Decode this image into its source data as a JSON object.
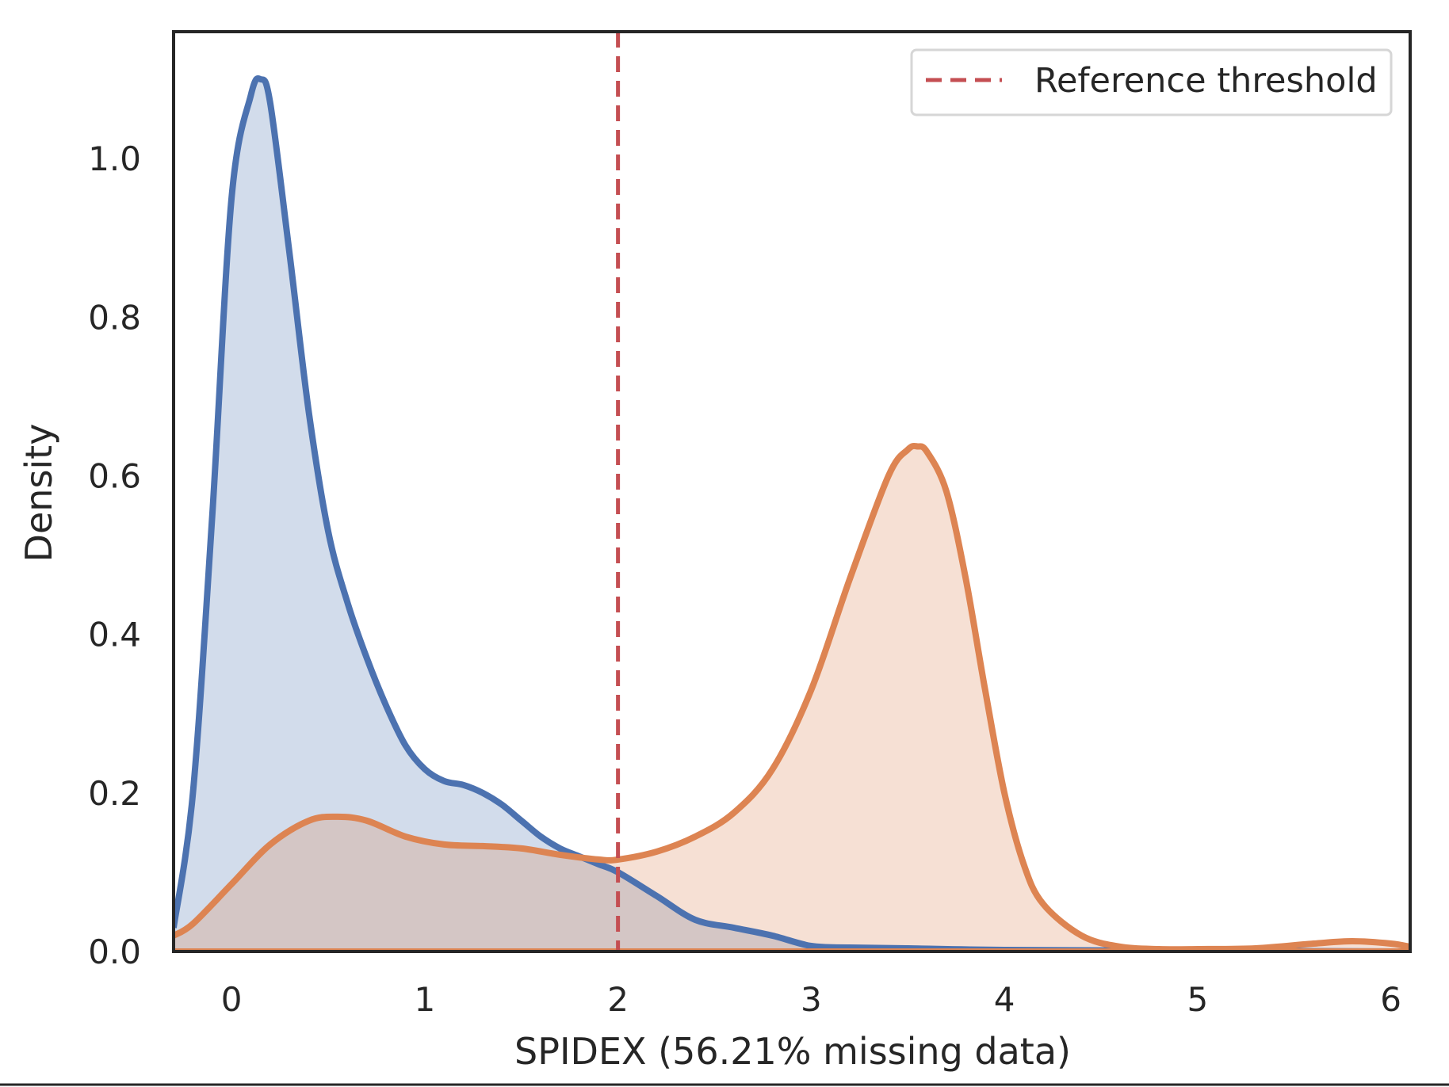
{
  "chart_data": {
    "type": "area",
    "xlabel": "SPIDEX (56.21% missing data)",
    "ylabel": "Density",
    "xlim": [
      -0.3,
      6.1
    ],
    "ylim": [
      0,
      1.16
    ],
    "xticks": [
      0,
      1,
      2,
      3,
      4,
      5,
      6
    ],
    "yticks": [
      0.0,
      0.2,
      0.4,
      0.6,
      0.8,
      1.0
    ],
    "xtick_labels": [
      "0",
      "1",
      "2",
      "3",
      "4",
      "5",
      "6"
    ],
    "ytick_labels": [
      "0.0",
      "0.2",
      "0.4",
      "0.6",
      "0.8",
      "1.0"
    ],
    "grid": false,
    "legend_position": "top-right",
    "legend_entries": [
      "Reference threshold"
    ],
    "reference_line": {
      "x": 2,
      "label": "Reference threshold",
      "color": "#c44e52",
      "style": "dashed"
    },
    "series": [
      {
        "color": "#4c72b0",
        "x": [
          -0.3,
          -0.2,
          -0.1,
          0.0,
          0.1,
          0.15,
          0.2,
          0.3,
          0.4,
          0.5,
          0.6,
          0.7,
          0.8,
          0.9,
          1.0,
          1.1,
          1.2,
          1.3,
          1.4,
          1.5,
          1.6,
          1.7,
          1.8,
          1.9,
          2.0,
          2.2,
          2.4,
          2.6,
          2.8,
          3.0,
          3.2,
          3.5,
          4.0,
          5.0,
          6.1
        ],
        "y": [
          0.03,
          0.2,
          0.55,
          0.95,
          1.08,
          1.1,
          1.07,
          0.88,
          0.68,
          0.53,
          0.44,
          0.37,
          0.31,
          0.26,
          0.23,
          0.215,
          0.21,
          0.2,
          0.185,
          0.165,
          0.145,
          0.13,
          0.12,
          0.11,
          0.1,
          0.07,
          0.04,
          0.03,
          0.02,
          0.007,
          0.005,
          0.004,
          0.002,
          0.001,
          0.0
        ]
      },
      {
        "color": "#dd8452",
        "x": [
          -0.3,
          -0.2,
          0.0,
          0.2,
          0.4,
          0.55,
          0.7,
          0.9,
          1.1,
          1.3,
          1.5,
          1.7,
          1.9,
          2.0,
          2.2,
          2.4,
          2.6,
          2.8,
          3.0,
          3.2,
          3.4,
          3.5,
          3.55,
          3.6,
          3.7,
          3.8,
          3.9,
          4.0,
          4.1,
          4.2,
          4.4,
          4.6,
          4.8,
          5.0,
          5.3,
          5.6,
          5.8,
          6.0,
          6.1
        ],
        "y": [
          0.02,
          0.035,
          0.085,
          0.135,
          0.165,
          0.17,
          0.165,
          0.145,
          0.135,
          0.133,
          0.13,
          0.122,
          0.116,
          0.116,
          0.126,
          0.145,
          0.175,
          0.23,
          0.33,
          0.47,
          0.6,
          0.633,
          0.637,
          0.63,
          0.58,
          0.47,
          0.33,
          0.2,
          0.11,
          0.06,
          0.02,
          0.006,
          0.003,
          0.003,
          0.004,
          0.01,
          0.013,
          0.01,
          0.006
        ]
      }
    ]
  }
}
